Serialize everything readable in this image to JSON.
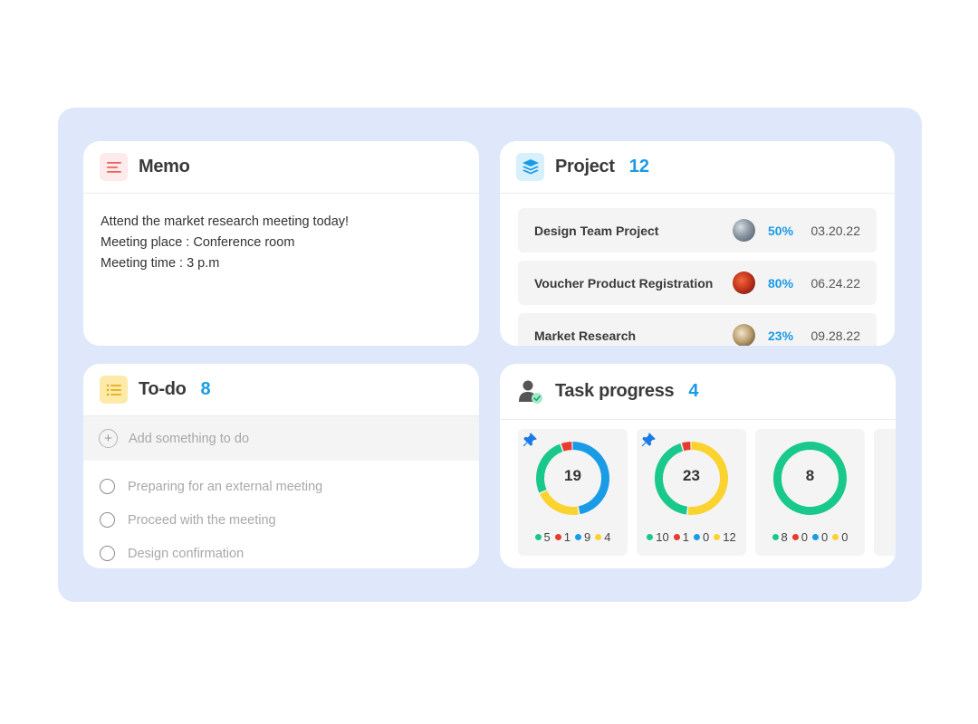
{
  "colors": {
    "board": "#dee8fa",
    "accent": "#1a9be6",
    "green": "#19c98b",
    "red": "#e83a2e",
    "blue": "#1a9be6",
    "yellow": "#fbd32e"
  },
  "memo": {
    "title": "Memo",
    "icon": "memo-lines-icon",
    "lines": [
      "Attend the market research meeting today!",
      "Meeting place : Conference room",
      "Meeting time : 3 p.m"
    ]
  },
  "project": {
    "title": "Project",
    "count": "12",
    "icon": "layers-icon",
    "rows": [
      {
        "name": "Design Team Project",
        "percent": "50%",
        "date": "03.20.22",
        "avatar": "avatar-photo"
      },
      {
        "name": "Voucher Product Registration",
        "percent": "80%",
        "date": "06.24.22",
        "avatar": "avatar-photo"
      },
      {
        "name": "Market Research",
        "percent": "23%",
        "date": "09.28.22",
        "avatar": "avatar-photo"
      }
    ]
  },
  "todo": {
    "title": "To-do",
    "count": "8",
    "icon": "checklist-icon",
    "add_placeholder": "Add something to do",
    "items": [
      "Preparing for an external meeting",
      "Proceed with the meeting",
      "Design confirmation"
    ]
  },
  "tasks": {
    "title": "Task progress",
    "count": "4",
    "icon": "user-check-icon",
    "cards": [
      {
        "pinned": true,
        "total": "19",
        "green": 5,
        "red": 1,
        "blue": 9,
        "yellow": 4,
        "green_label": "5",
        "red_label": "1",
        "blue_label": "9",
        "yellow_label": "4"
      },
      {
        "pinned": true,
        "total": "23",
        "green": 10,
        "red": 1,
        "blue": 0,
        "yellow": 12,
        "green_label": "10",
        "red_label": "1",
        "blue_label": "0",
        "yellow_label": "12"
      },
      {
        "pinned": false,
        "total": "8",
        "green": 8,
        "red": 0,
        "blue": 0,
        "yellow": 0,
        "green_label": "8",
        "red_label": "0",
        "blue_label": "0",
        "yellow_label": "0"
      }
    ]
  }
}
